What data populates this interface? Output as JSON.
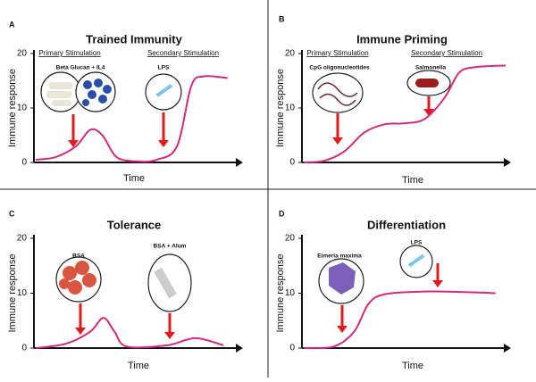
{
  "chart_data": [
    {
      "type": "line",
      "panel": "A",
      "title": "Trained Immunity",
      "xlabel": "Time",
      "ylabel": "Immune response",
      "ylim": [
        0,
        20
      ],
      "yticks": [
        0,
        10,
        20
      ],
      "xlim": [
        0,
        10
      ],
      "color": "#d42a7c",
      "annotations": [
        "Primary Stimulation",
        "Secondary Stimulation",
        "Beta Glucan + IL4",
        "LPS"
      ],
      "x": [
        0,
        1,
        2,
        2.7,
        3.3,
        4,
        5,
        6,
        7,
        7.7,
        8.3,
        9.5
      ],
      "values": [
        0.5,
        1,
        3,
        6,
        5,
        1,
        0.2,
        0.5,
        3,
        14,
        15.8,
        15.5
      ]
    },
    {
      "type": "line",
      "panel": "B",
      "title": "Immune Priming",
      "xlabel": "Time",
      "ylabel": "Immune response",
      "ylim": [
        0,
        20
      ],
      "yticks": [
        0,
        10,
        20
      ],
      "xlim": [
        0,
        10
      ],
      "color": "#d42a7c",
      "annotations": [
        "Primary Stimulation",
        "Secondary Stimulation",
        "CpG oligonucleotides",
        "Salmonella"
      ],
      "x": [
        0,
        1,
        2,
        3,
        4,
        5,
        6,
        7,
        7.7,
        8.5,
        10
      ],
      "values": [
        0,
        0.3,
        2,
        5.5,
        7,
        7.2,
        8,
        12,
        16.5,
        17.5,
        17.8
      ]
    },
    {
      "type": "line",
      "panel": "C",
      "title": "Tolerance",
      "xlabel": "Time",
      "ylabel": "Immune response",
      "ylim": [
        0,
        20
      ],
      "yticks": [
        0,
        10,
        20
      ],
      "xlim": [
        0,
        10
      ],
      "color": "#d42a7c",
      "annotations": [
        "BSA",
        "BSA + Alum"
      ],
      "x": [
        0,
        1.5,
        2.7,
        3.35,
        3.9,
        4.5,
        6.5,
        7.9,
        9.3
      ],
      "values": [
        0,
        0.8,
        3,
        5.5,
        3,
        0.3,
        0.5,
        1.8,
        0.5
      ]
    },
    {
      "type": "line",
      "panel": "D",
      "title": "Differentiation",
      "xlabel": "Time",
      "ylabel": "Immune response",
      "ylim": [
        0,
        20
      ],
      "yticks": [
        0,
        10,
        20
      ],
      "xlim": [
        0,
        10
      ],
      "color": "#d42a7c",
      "annotations": [
        "Eimeria maxima",
        "LPS"
      ],
      "x": [
        0,
        1.5,
        2.5,
        3.2,
        4,
        6,
        8,
        9.5
      ],
      "values": [
        0,
        0.3,
        3,
        8,
        9.8,
        10.3,
        10.2,
        10
      ]
    }
  ]
}
